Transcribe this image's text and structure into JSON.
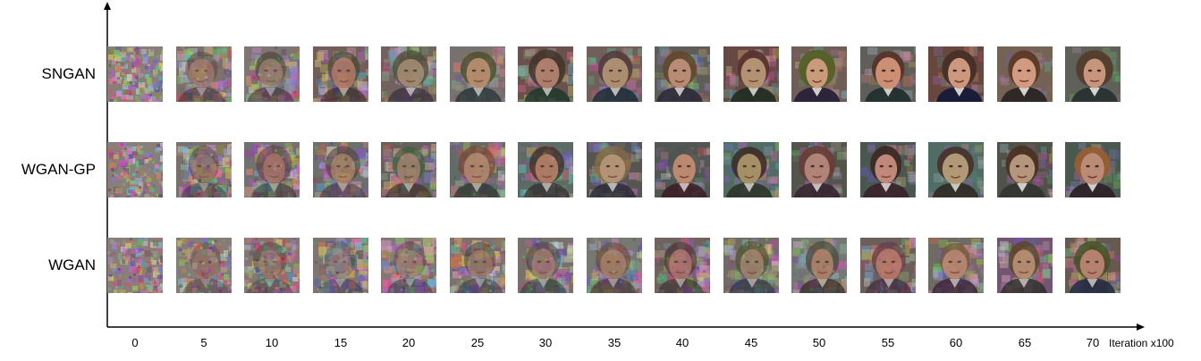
{
  "figure": {
    "rows": [
      {
        "label": "SNGAN",
        "stage_quality": [
          0.0,
          0.25,
          0.3,
          0.45,
          0.55,
          0.6,
          0.65,
          0.7,
          0.75,
          0.8,
          0.85,
          0.85,
          0.9,
          0.9,
          0.95
        ]
      },
      {
        "label": "WGAN-GP",
        "stage_quality": [
          0.0,
          0.2,
          0.3,
          0.35,
          0.45,
          0.5,
          0.55,
          0.65,
          0.7,
          0.7,
          0.75,
          0.8,
          0.8,
          0.85,
          0.85
        ]
      },
      {
        "label": "WGAN",
        "stage_quality": [
          0.0,
          0.1,
          0.12,
          0.18,
          0.2,
          0.25,
          0.3,
          0.35,
          0.4,
          0.45,
          0.5,
          0.5,
          0.55,
          0.6,
          0.65
        ]
      }
    ],
    "x_ticks": [
      "0",
      "5",
      "10",
      "15",
      "20",
      "25",
      "30",
      "35",
      "40",
      "45",
      "50",
      "55",
      "60",
      "65",
      "70"
    ],
    "x_axis_title": "Iteration x100",
    "colors": {
      "axis": "#000000",
      "noise_base": "#8a7f78",
      "background_dark": "#2b2a2c",
      "skin": "#c89a7e",
      "hair": "#3a2a22",
      "suit": "#24262e"
    },
    "thumbnail_content": "generated-face-image"
  }
}
